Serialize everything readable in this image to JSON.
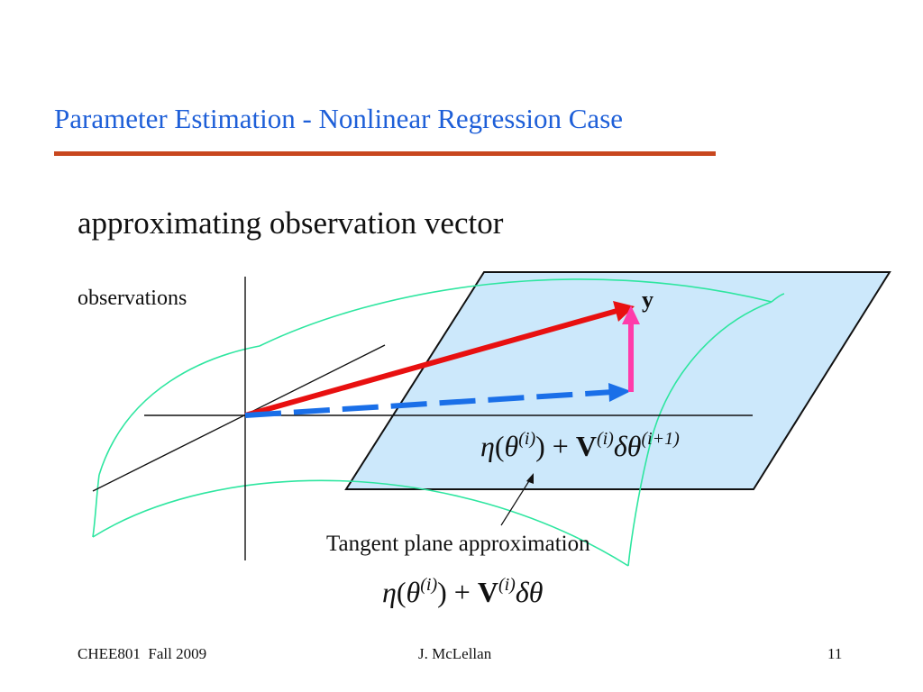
{
  "slide": {
    "title": "Parameter Estimation - Nonlinear Regression Case",
    "subtitle": "approximating observation vector"
  },
  "diagram": {
    "observations_label": "observations",
    "y_label": "y",
    "tangent_label": "Tangent plane approximation",
    "equation_plane": {
      "eta": "η",
      "lparen": "(",
      "theta": "θ",
      "sup_theta": "(i)",
      "rparen": ")",
      "plus": "+",
      "V": "V",
      "sup_V": "(i)",
      "delta_theta": "δθ",
      "sup_delta": "(i+1)"
    },
    "equation_tangent": {
      "eta": "η",
      "lparen": "(",
      "theta": "θ",
      "sup_theta": "(i)",
      "rparen": ")",
      "plus": "+",
      "V": "V",
      "sup_V": "(i)",
      "delta_theta": "δθ"
    },
    "colors": {
      "plane_fill": "#cce8fb",
      "surface_stroke": "#2ee6a0",
      "red_arrow": "#e81010",
      "blue_dashed": "#1a6fe8",
      "pink_arrow": "#ff3caa"
    }
  },
  "footer": {
    "left": "CHEE801  Fall 2009",
    "center": "J. McLellan",
    "right": "11"
  }
}
